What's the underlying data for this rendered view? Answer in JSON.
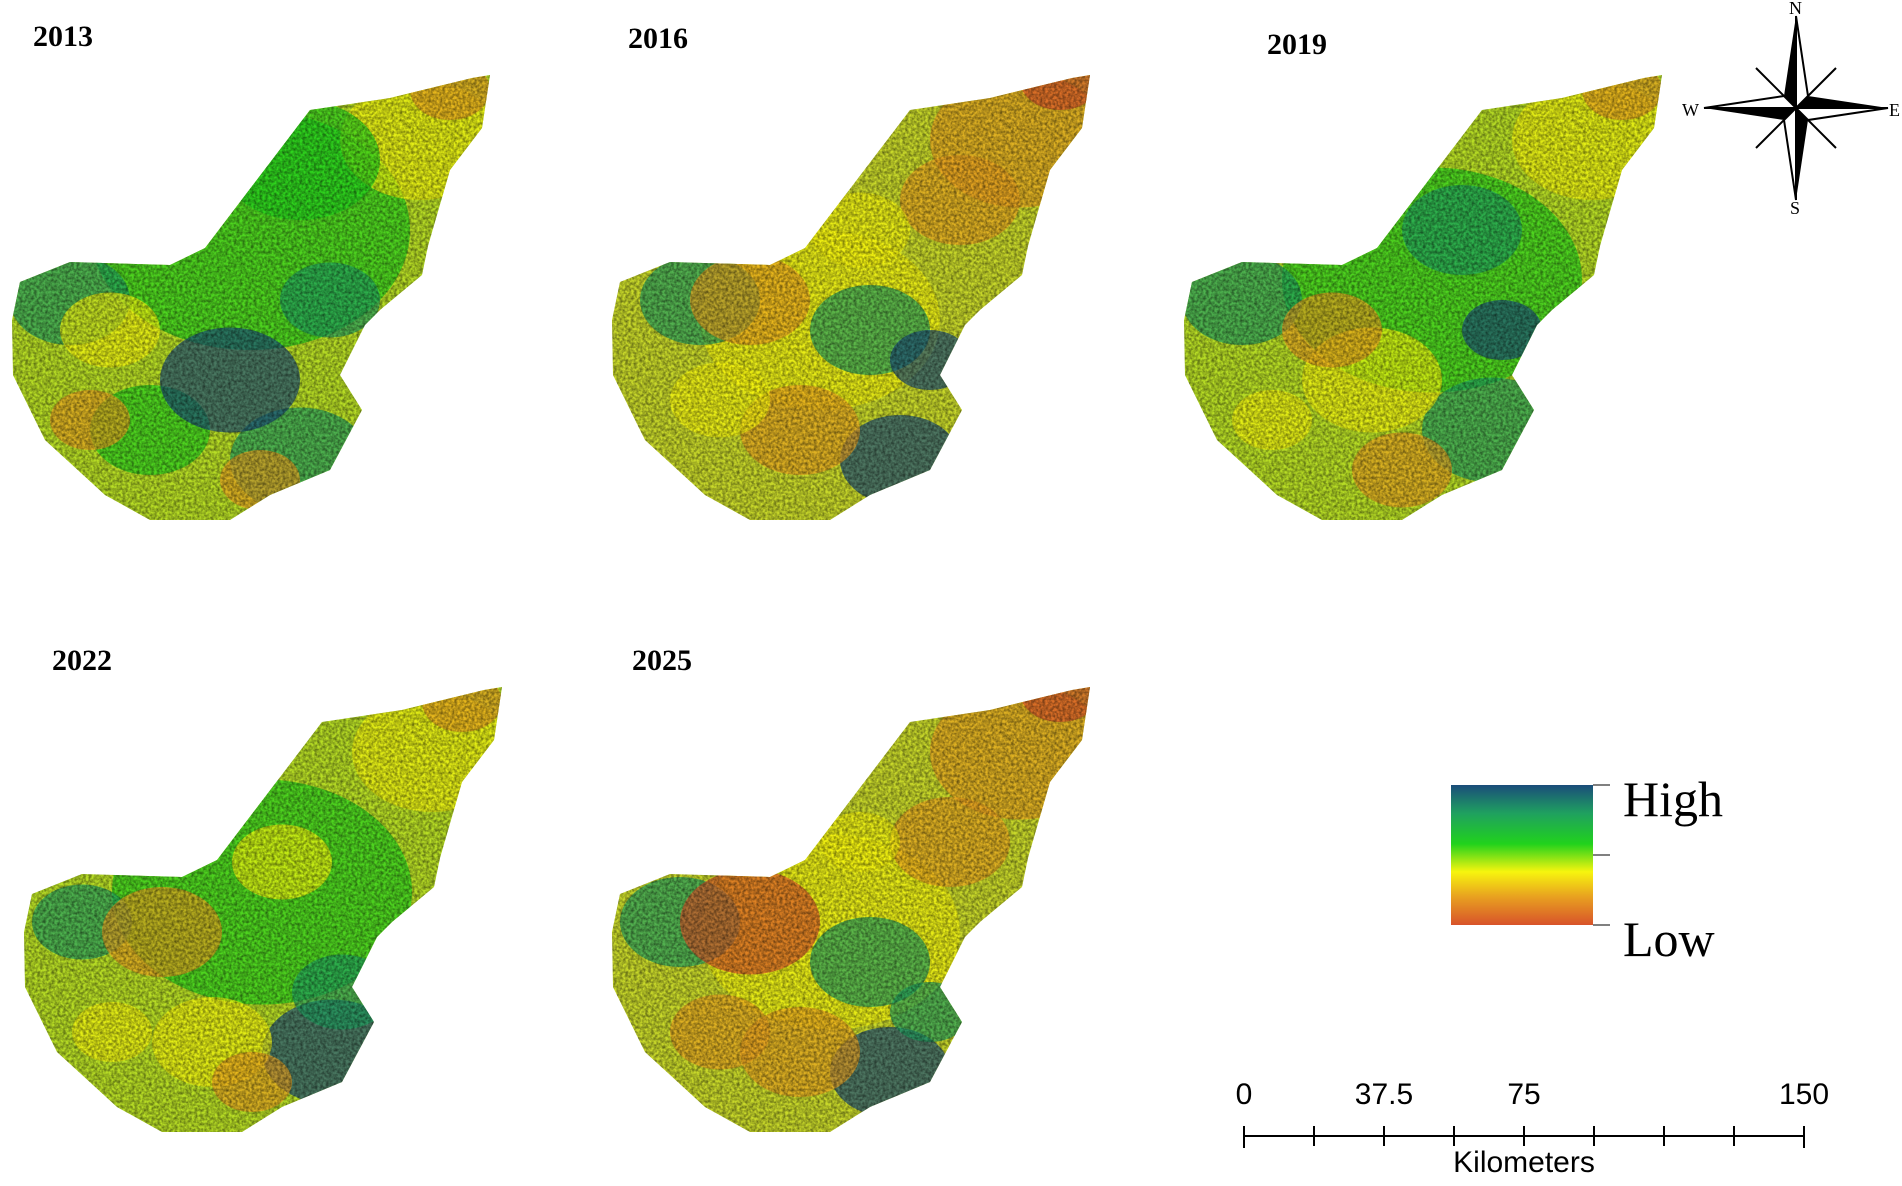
{
  "panels": [
    {
      "year": "2013"
    },
    {
      "year": "2016"
    },
    {
      "year": "2019"
    },
    {
      "year": "2022"
    },
    {
      "year": "2025"
    }
  ],
  "legend": {
    "high": "High",
    "low": "Low",
    "colors": [
      "#1a4d7a",
      "#1fa060",
      "#21d21c",
      "#f7f50e",
      "#e8a020",
      "#d8532a"
    ]
  },
  "scale_bar": {
    "ticks": [
      "0",
      "37.5",
      "75",
      "150"
    ],
    "unit": "Kilometers"
  },
  "compass": {
    "n": "N",
    "s": "S",
    "e": "E",
    "w": "W"
  }
}
